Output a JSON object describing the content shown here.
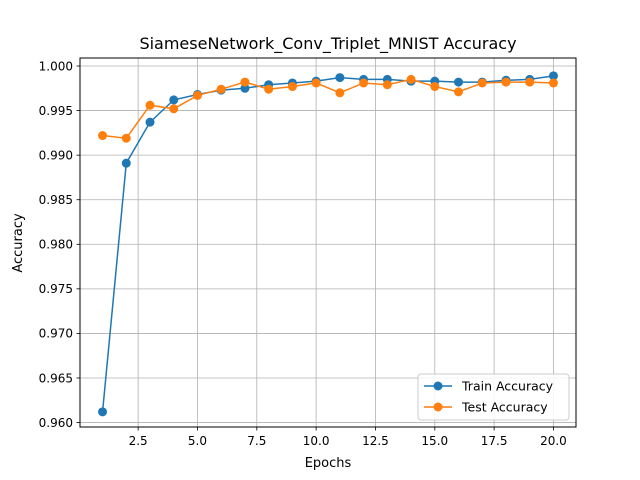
{
  "chart_data": {
    "type": "line",
    "title": "SiameseNetwork_Conv_Triplet_MNIST Accuracy",
    "xlabel": "Epochs",
    "ylabel": "Accuracy",
    "xlim": [
      0.05,
      20.95
    ],
    "ylim": [
      0.9595,
      1.0009
    ],
    "x_ticks": [
      2.5,
      5.0,
      7.5,
      10.0,
      12.5,
      15.0,
      17.5,
      20.0
    ],
    "x_tick_labels": [
      "2.5",
      "5.0",
      "7.5",
      "10.0",
      "12.5",
      "15.0",
      "17.5",
      "20.0"
    ],
    "y_ticks": [
      0.96,
      0.965,
      0.97,
      0.975,
      0.98,
      0.985,
      0.99,
      0.995,
      1.0
    ],
    "y_tick_labels": [
      "0.960",
      "0.965",
      "0.970",
      "0.975",
      "0.980",
      "0.985",
      "0.990",
      "0.995",
      "1.000"
    ],
    "grid": true,
    "legend_position": "lower-right",
    "x": [
      1,
      2,
      3,
      4,
      5,
      6,
      7,
      8,
      9,
      10,
      11,
      12,
      13,
      14,
      15,
      16,
      17,
      18,
      19,
      20
    ],
    "series": [
      {
        "name": "Train Accuracy",
        "color": "#1f77b4",
        "values": [
          0.9612,
          0.9891,
          0.9937,
          0.9962,
          0.9968,
          0.9973,
          0.9975,
          0.9979,
          0.9981,
          0.9983,
          0.9987,
          0.9985,
          0.9985,
          0.9983,
          0.9983,
          0.9982,
          0.9982,
          0.9984,
          0.9985,
          0.9989
        ]
      },
      {
        "name": "Test Accuracy",
        "color": "#ff7f0e",
        "values": [
          0.9922,
          0.9919,
          0.9956,
          0.9952,
          0.9967,
          0.9974,
          0.9982,
          0.9974,
          0.9977,
          0.9981,
          0.997,
          0.9981,
          0.9979,
          0.9985,
          0.9977,
          0.9971,
          0.9981,
          0.9982,
          0.9982,
          0.9981
        ]
      }
    ]
  }
}
